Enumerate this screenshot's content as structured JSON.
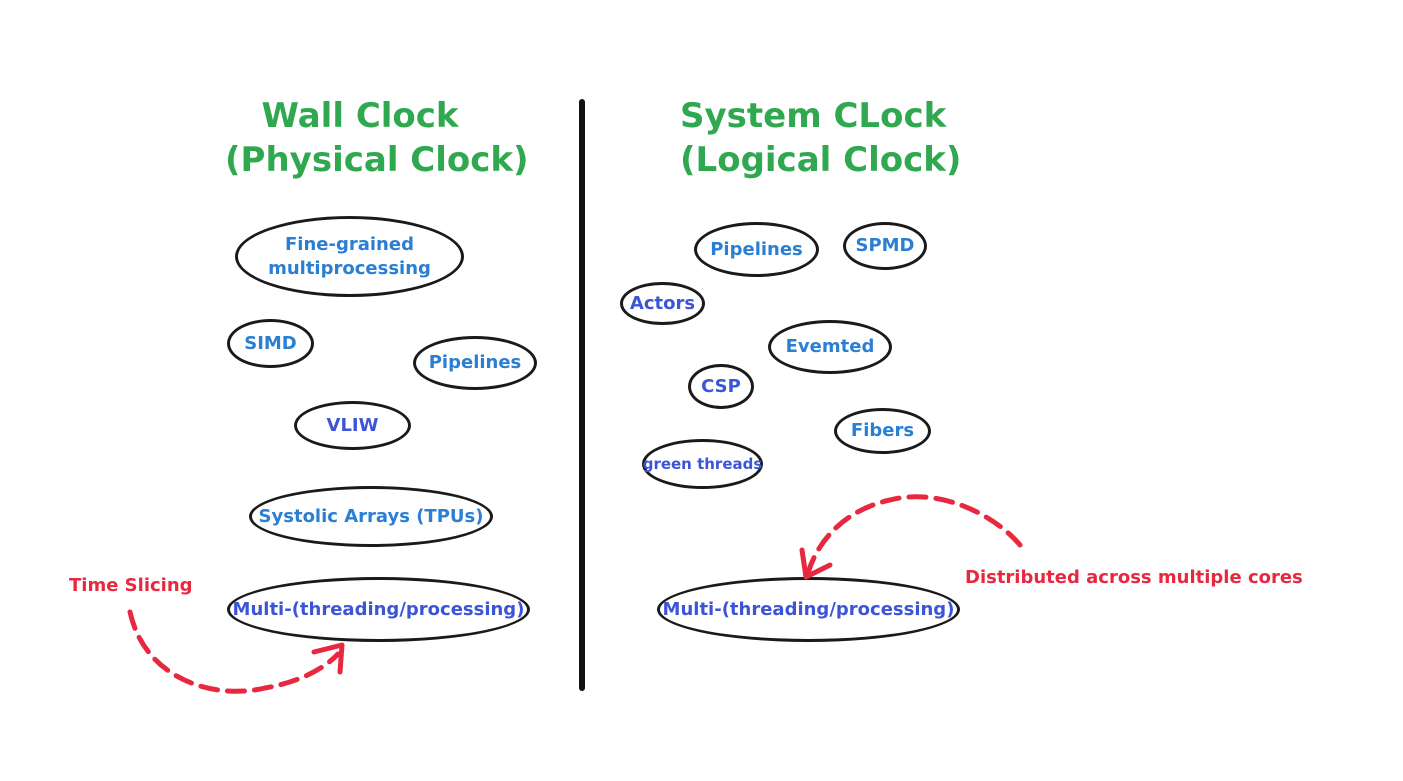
{
  "colors": {
    "heading": "#2fa84f",
    "concept_text_blue": "#2a7fd4",
    "concept_text_indigo": "#3c55d6",
    "annotation": "#e8283f",
    "outline": "#1a1a1a"
  },
  "left_panel": {
    "title_line1": "Wall Clock",
    "title_line2": "(Physical Clock)",
    "concepts": {
      "fine_grained_line1": "Fine-grained",
      "fine_grained_line2": "multiprocessing",
      "simd": "SIMD",
      "pipelines": "Pipelines",
      "vliw": "VLIW",
      "systolic": "Systolic Arrays (TPUs)",
      "multi": "Multi-(threading/processing)"
    },
    "annotation": "Time Slicing"
  },
  "right_panel": {
    "title_line1": "System CLock",
    "title_line2": "(Logical Clock)",
    "concepts": {
      "pipelines": "Pipelines",
      "spmd": "SPMD",
      "actors": "Actors",
      "evented": "Evemted",
      "csp": "CSP",
      "fibers": "Fibers",
      "green_threads": "green threads",
      "multi": "Multi-(threading/processing)"
    },
    "annotation": "Distributed across multiple cores"
  }
}
